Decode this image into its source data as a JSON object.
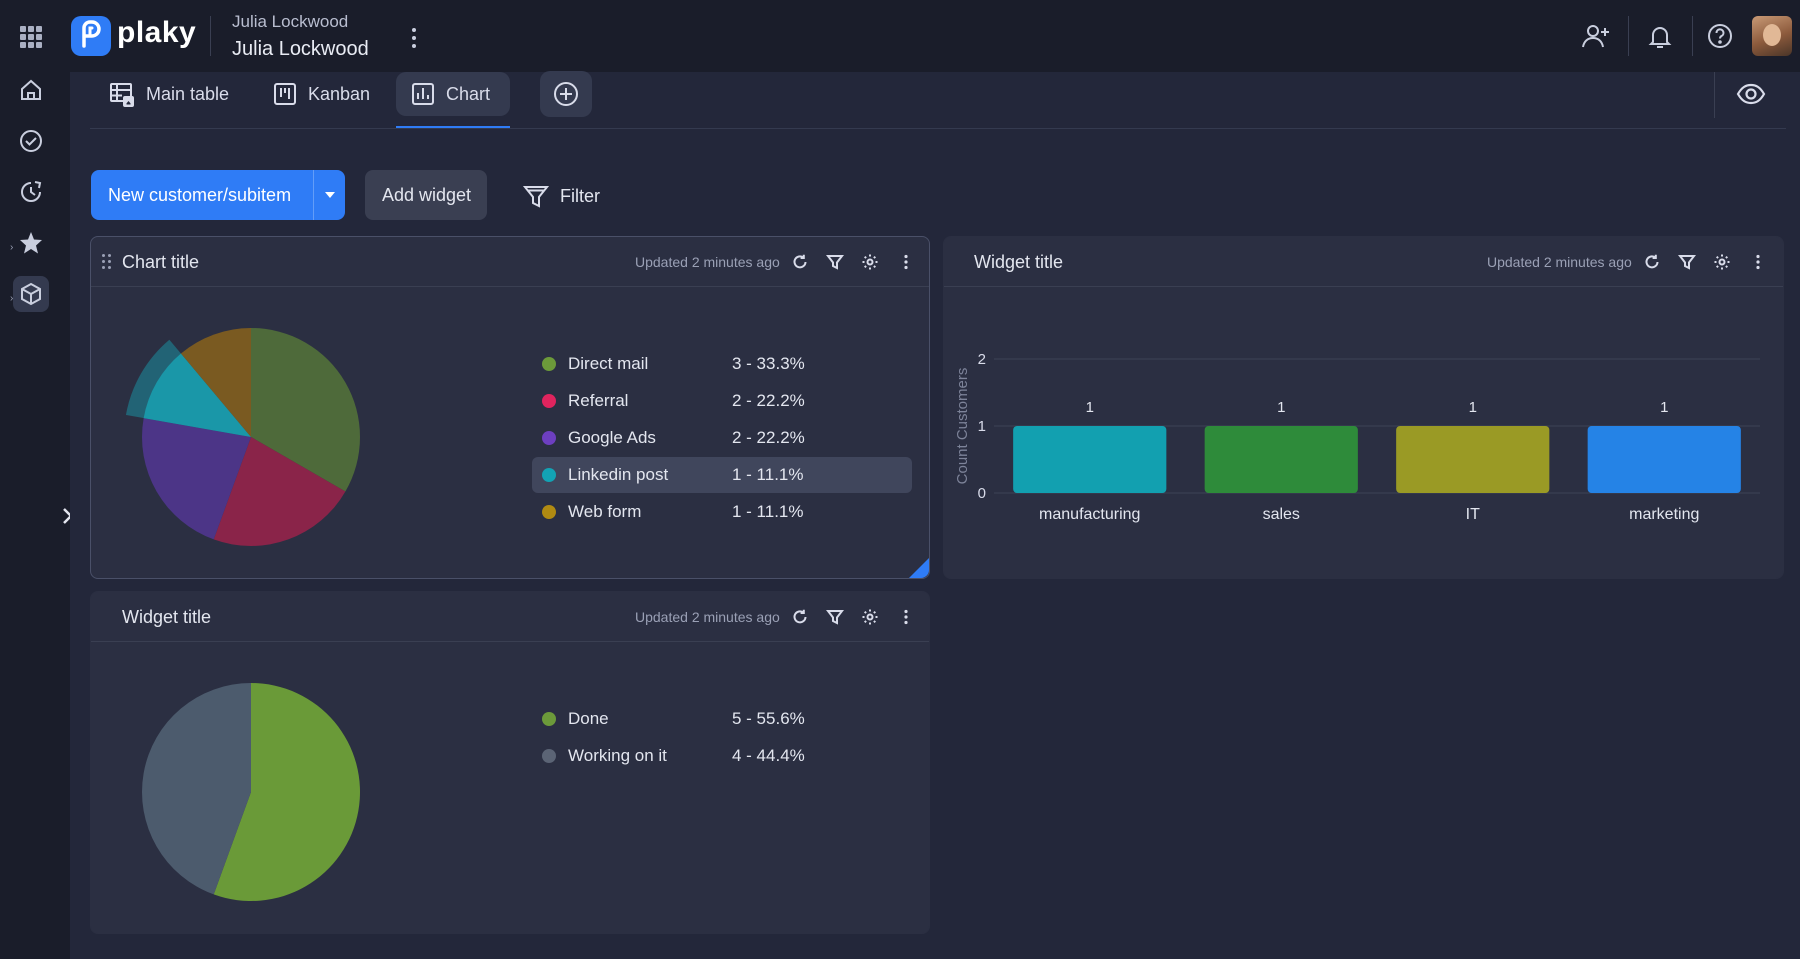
{
  "app": {
    "logo_text": "plaky",
    "workspace_sub": "Julia Lockwood",
    "workspace_title": "Julia Lockwood"
  },
  "tabs": [
    {
      "label": "Main table",
      "icon": "table-icon"
    },
    {
      "label": "Kanban",
      "icon": "kanban-icon"
    },
    {
      "label": "Chart",
      "icon": "chart-icon",
      "active": true
    }
  ],
  "toolbar": {
    "new_item_label": "New customer/subitem",
    "add_widget_label": "Add widget",
    "filter_label": "Filter"
  },
  "widgets": {
    "source": {
      "title": "Chart title",
      "updated": "Updated 2 minutes ago",
      "legend": [
        {
          "name": "Direct mail",
          "value": "3 - 33.3%",
          "color": "#6c9a3a"
        },
        {
          "name": "Referral",
          "value": "2 - 22.2%",
          "color": "#e0245e"
        },
        {
          "name": "Google Ads",
          "value": "2 - 22.2%",
          "color": "#6d3fc0"
        },
        {
          "name": "Linkedin post",
          "value": "1 - 11.1%",
          "color": "#13a3b4"
        },
        {
          "name": "Web form",
          "value": "1 - 11.1%",
          "color": "#b08a12"
        }
      ]
    },
    "industry": {
      "title": "Widget title",
      "updated": "Updated 2 minutes ago"
    },
    "status": {
      "title": "Widget title",
      "updated": "Updated 2 minutes ago",
      "legend": [
        {
          "name": "Done",
          "value": "5 - 55.6%",
          "color": "#6c9a3a"
        },
        {
          "name": "Working on it",
          "value": "4 - 44.4%",
          "color": "#5b6475"
        }
      ]
    }
  },
  "chart_data": [
    {
      "type": "pie",
      "title": "Chart title",
      "labels": [
        "Direct mail",
        "Referral",
        "Google Ads",
        "Linkedin post",
        "Web form"
      ],
      "values": [
        3,
        2,
        2,
        1,
        1
      ],
      "colors": [
        "#4e6a3a",
        "#8a2449",
        "#4c3587",
        "#1a97a8",
        "#7a5a21"
      ],
      "highlighted": "Linkedin post"
    },
    {
      "type": "bar",
      "title": "Widget title",
      "categories": [
        "manufacturing",
        "sales",
        "IT",
        "marketing"
      ],
      "values": [
        1,
        1,
        1,
        1
      ],
      "data_labels": [
        "1",
        "1",
        "1",
        "1"
      ],
      "colors": [
        "#12a0b0",
        "#2e8b3a",
        "#9a9a25",
        "#2583e6"
      ],
      "ylabel": "Count Customers",
      "ylim": [
        0,
        2
      ],
      "yticks": [
        "0",
        "1",
        "2"
      ],
      "grid": true
    },
    {
      "type": "pie",
      "title": "Widget title",
      "labels": [
        "Done",
        "Working on it"
      ],
      "values": [
        5,
        4
      ],
      "colors": [
        "#6a9a38",
        "#4c5b6d"
      ]
    }
  ]
}
